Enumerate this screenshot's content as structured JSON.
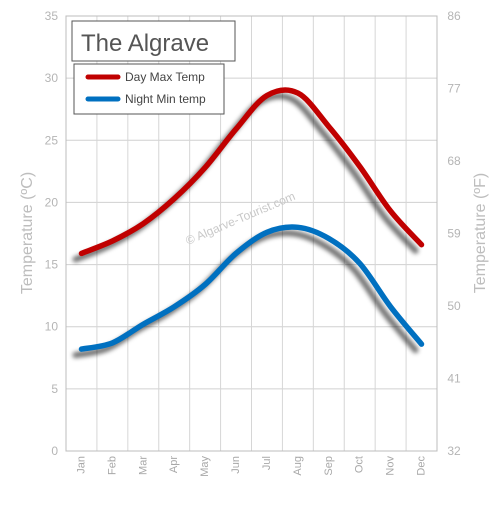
{
  "chart_data": {
    "type": "line",
    "title": "The Algrave",
    "watermark": "© Algarve-Tourist.com",
    "categories": [
      "Jan",
      "Feb",
      "Mar",
      "Apr",
      "May",
      "Jun",
      "Jul",
      "Aug",
      "Sep",
      "Oct",
      "Nov",
      "Dec"
    ],
    "series": [
      {
        "name": "Day Max Temp",
        "color": "#c00000",
        "values": [
          15.9,
          16.9,
          18.3,
          20.3,
          22.8,
          25.9,
          28.6,
          28.8,
          26.1,
          22.9,
          19.3,
          16.6
        ]
      },
      {
        "name": "Night Min temp",
        "color": "#0070c0",
        "values": [
          8.2,
          8.7,
          10.2,
          11.6,
          13.4,
          15.9,
          17.6,
          18.0,
          17.1,
          15.1,
          11.6,
          8.6
        ]
      }
    ],
    "ylabel": "Temperature (ºC)",
    "ylabel_right": "Temperature (ºF)",
    "ylim": [
      0,
      35
    ],
    "yticks": [
      "0",
      "5",
      "10",
      "15",
      "20",
      "25",
      "30",
      "35"
    ],
    "ylim_right": [
      32,
      86
    ],
    "yticks_right": [
      "32",
      "41",
      "50",
      "59",
      "68",
      "77",
      "86"
    ],
    "grid": true,
    "legend_position": "top-left"
  }
}
